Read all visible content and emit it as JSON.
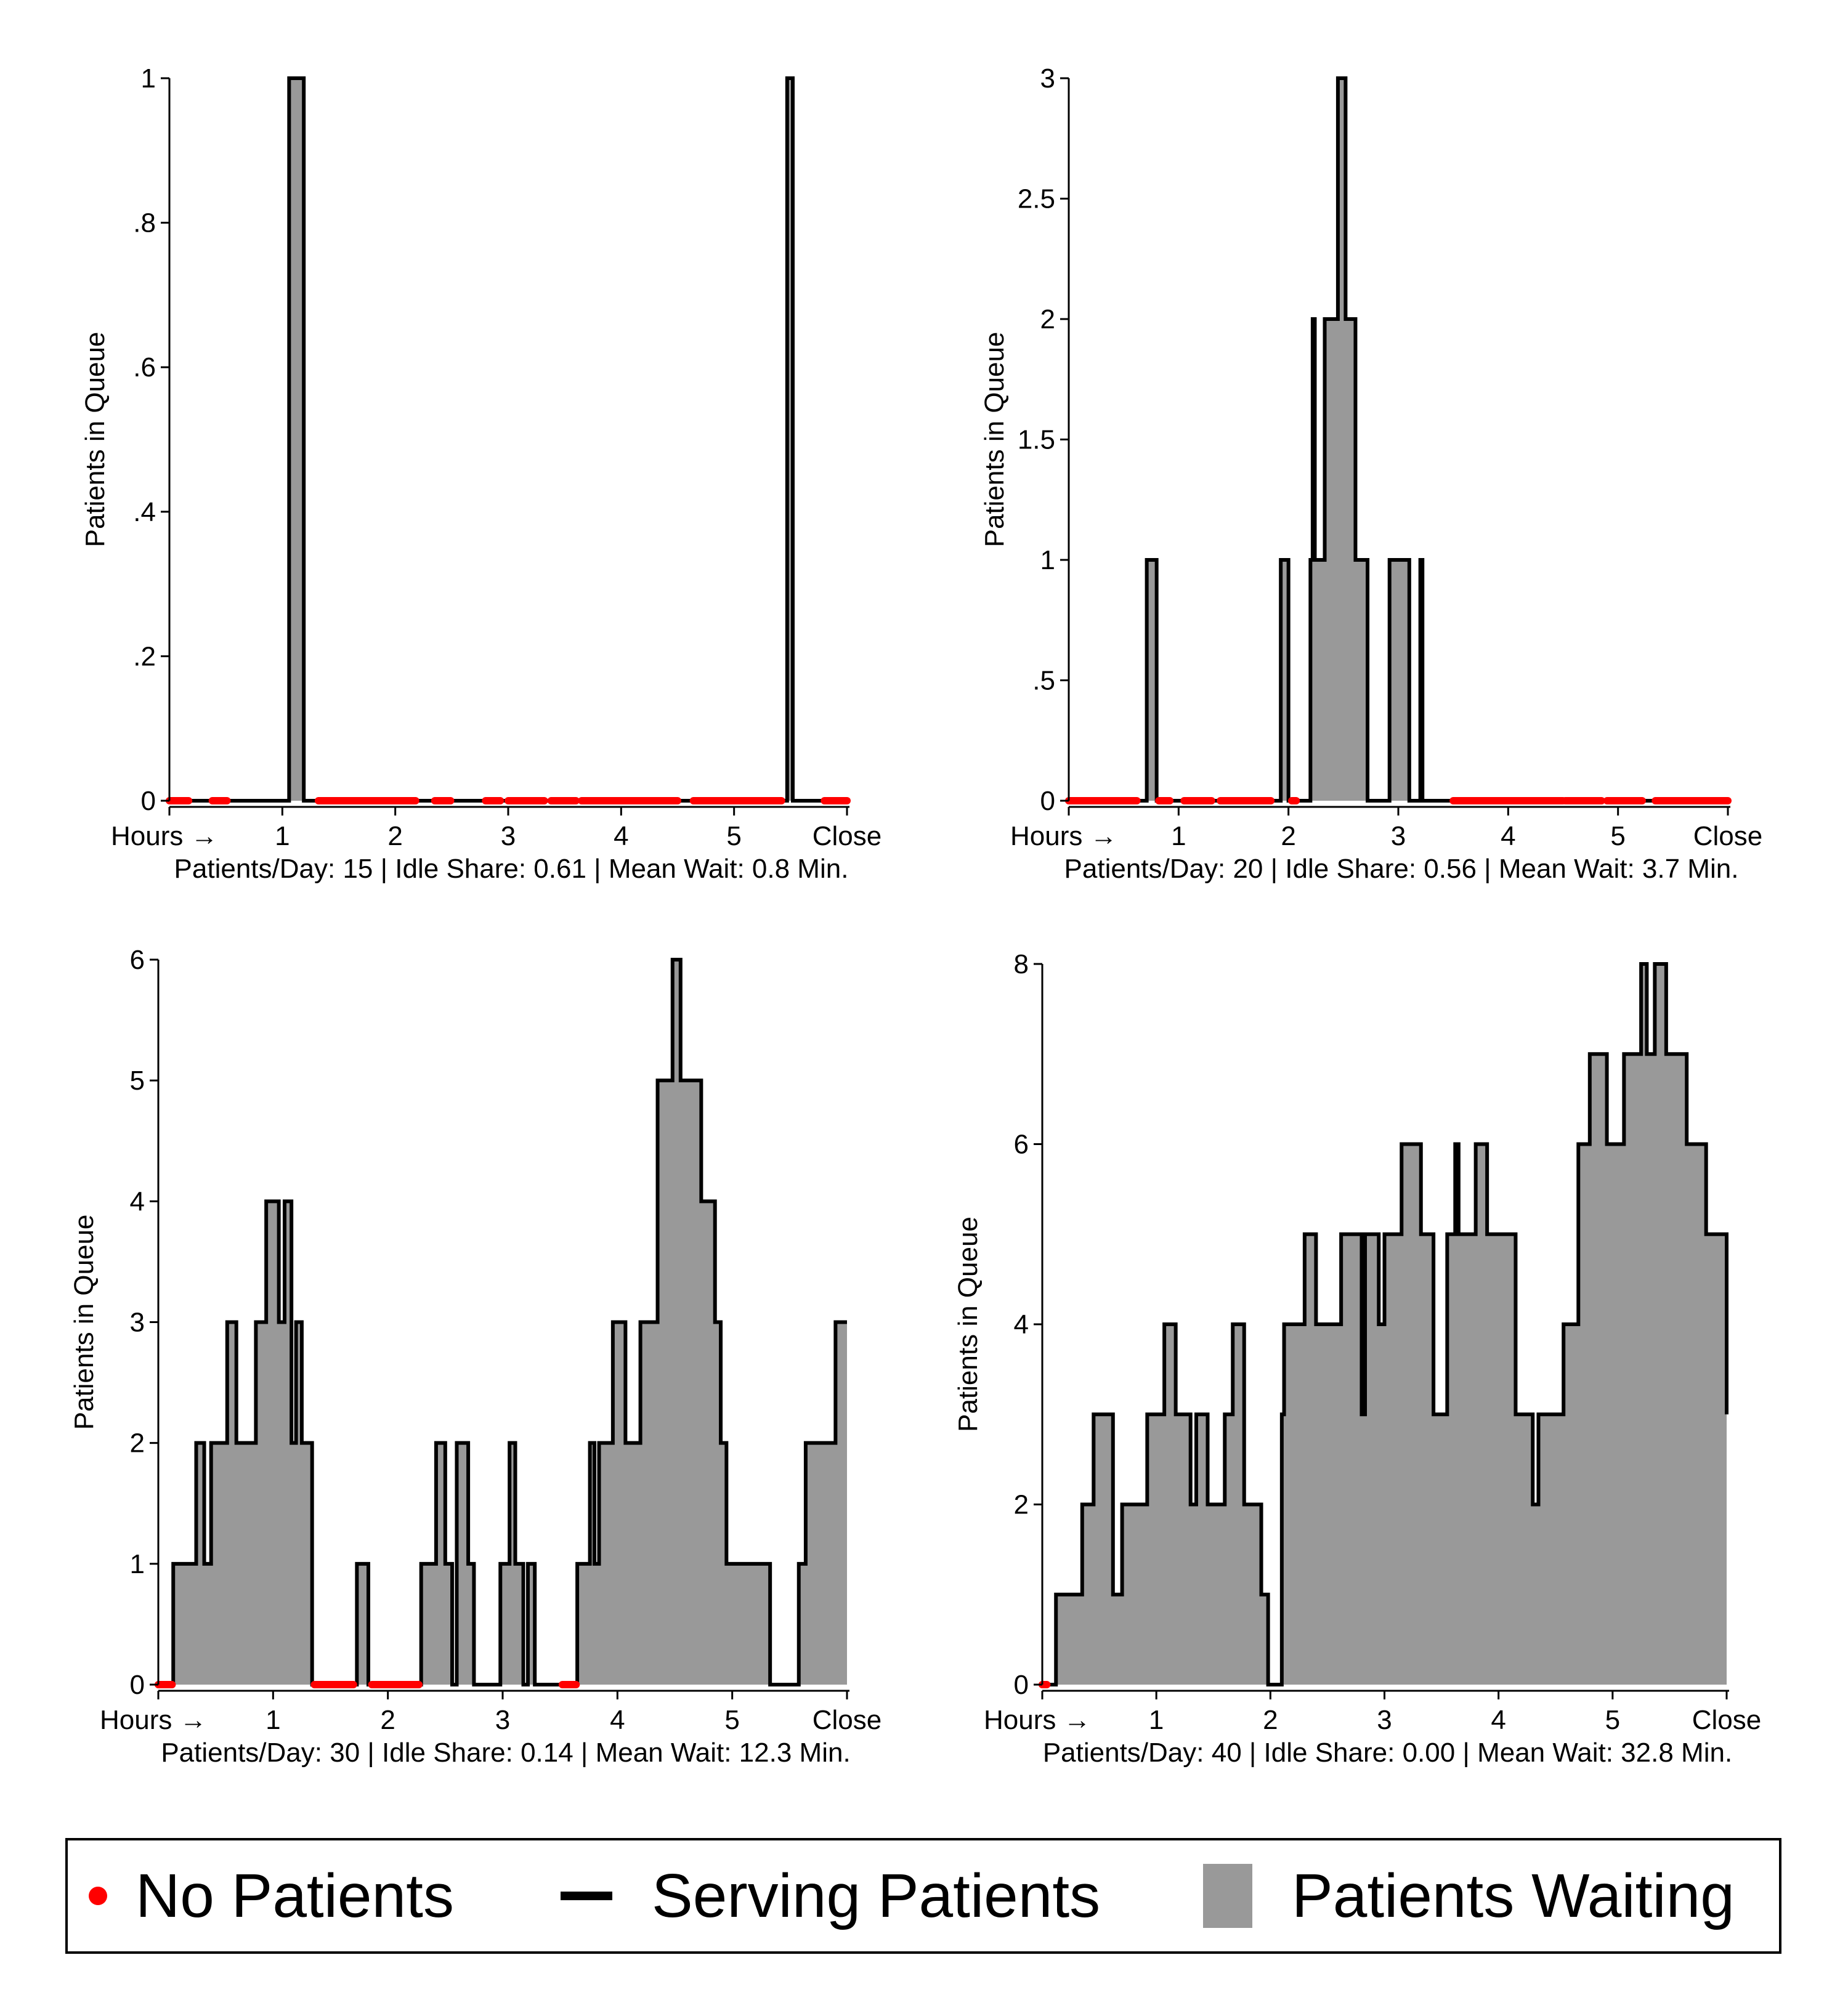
{
  "colors": {
    "idle": "#ff0000",
    "serving": "#000000",
    "waiting": "#999999"
  },
  "legend": {
    "no_patients": "No Patients",
    "serving_patients": "Serving Patients",
    "patients_waiting": "Patients Waiting"
  },
  "chart_data": [
    {
      "type": "area",
      "ylabel": "Patients in Queue",
      "xlabel": "Patients/Day: 15 | Idle Share: 0.61 | Mean Wait: 0.8 Min.",
      "x_ticks": [
        {
          "value": 0,
          "label": "Hours →"
        },
        {
          "value": 1,
          "label": "1"
        },
        {
          "value": 2,
          "label": "2"
        },
        {
          "value": 3,
          "label": "3"
        },
        {
          "value": 4,
          "label": "4"
        },
        {
          "value": 5,
          "label": "5"
        },
        {
          "value": 6,
          "label": "Close"
        }
      ],
      "y_ticks": [
        {
          "value": 0,
          "label": "0"
        },
        {
          "value": 0.2,
          "label": ".2"
        },
        {
          "value": 0.4,
          "label": ".4"
        },
        {
          "value": 0.6,
          "label": ".6"
        },
        {
          "value": 0.8,
          "label": ".8"
        },
        {
          "value": 1,
          "label": "1"
        }
      ],
      "xlim": [
        0,
        6
      ],
      "ylim": [
        0,
        1
      ],
      "queue_steps": [
        [
          0,
          0
        ],
        [
          1.06,
          1
        ],
        [
          1.19,
          0
        ],
        [
          5.47,
          1
        ],
        [
          5.52,
          0
        ],
        [
          6,
          0
        ]
      ],
      "idle_intervals": [
        [
          0,
          0.17
        ],
        [
          0.38,
          0.51
        ],
        [
          1.32,
          2.18
        ],
        [
          2.35,
          2.49
        ],
        [
          2.8,
          2.93
        ],
        [
          3,
          3.32
        ],
        [
          3.38,
          3.6
        ],
        [
          3.65,
          4.5
        ],
        [
          4.64,
          5.42
        ],
        [
          5.8,
          6
        ]
      ]
    },
    {
      "type": "area",
      "ylabel": "Patients in Queue",
      "xlabel": "Patients/Day: 20 | Idle Share: 0.56 | Mean Wait: 3.7 Min.",
      "x_ticks": [
        {
          "value": 0,
          "label": "Hours →"
        },
        {
          "value": 1,
          "label": "1"
        },
        {
          "value": 2,
          "label": "2"
        },
        {
          "value": 3,
          "label": "3"
        },
        {
          "value": 4,
          "label": "4"
        },
        {
          "value": 5,
          "label": "5"
        },
        {
          "value": 6,
          "label": "Close"
        }
      ],
      "y_ticks": [
        {
          "value": 0,
          "label": "0"
        },
        {
          "value": 0.5,
          "label": ".5"
        },
        {
          "value": 1,
          "label": "1"
        },
        {
          "value": 1.5,
          "label": "1.5"
        },
        {
          "value": 2,
          "label": "2"
        },
        {
          "value": 2.5,
          "label": "2.5"
        },
        {
          "value": 3,
          "label": "3"
        }
      ],
      "xlim": [
        0,
        6
      ],
      "ylim": [
        0,
        3
      ],
      "queue_steps": [
        [
          0,
          0
        ],
        [
          0.71,
          1
        ],
        [
          0.8,
          0
        ],
        [
          1.93,
          1
        ],
        [
          2.0,
          0
        ],
        [
          2.2,
          1
        ],
        [
          2.22,
          2
        ],
        [
          2.24,
          1
        ],
        [
          2.33,
          2
        ],
        [
          2.45,
          3
        ],
        [
          2.52,
          2
        ],
        [
          2.61,
          1
        ],
        [
          2.72,
          0
        ],
        [
          2.92,
          1
        ],
        [
          3.1,
          0
        ],
        [
          3.2,
          1
        ],
        [
          3.22,
          0
        ],
        [
          6,
          0
        ]
      ],
      "idle_intervals": [
        [
          0,
          0.62
        ],
        [
          0.82,
          0.92
        ],
        [
          1.05,
          1.3
        ],
        [
          1.38,
          1.84
        ],
        [
          2.03,
          2.07
        ],
        [
          3.5,
          4.5
        ],
        [
          4.52,
          4.85
        ],
        [
          4.9,
          5.22
        ],
        [
          5.34,
          6
        ]
      ]
    },
    {
      "type": "area",
      "ylabel": "Patients in Queue",
      "xlabel": "Patients/Day: 30 | Idle Share: 0.14 | Mean Wait: 12.3 Min.",
      "x_ticks": [
        {
          "value": 0,
          "label": "Hours →"
        },
        {
          "value": 1,
          "label": "1"
        },
        {
          "value": 2,
          "label": "2"
        },
        {
          "value": 3,
          "label": "3"
        },
        {
          "value": 4,
          "label": "4"
        },
        {
          "value": 5,
          "label": "5"
        },
        {
          "value": 6,
          "label": "Close"
        }
      ],
      "y_ticks": [
        {
          "value": 0,
          "label": "0"
        },
        {
          "value": 1,
          "label": "1"
        },
        {
          "value": 2,
          "label": "2"
        },
        {
          "value": 3,
          "label": "3"
        },
        {
          "value": 4,
          "label": "4"
        },
        {
          "value": 5,
          "label": "5"
        },
        {
          "value": 6,
          "label": "6"
        }
      ],
      "xlim": [
        0,
        6
      ],
      "ylim": [
        0,
        6
      ],
      "queue_steps": [
        [
          0,
          0
        ],
        [
          0.13,
          1
        ],
        [
          0.33,
          2
        ],
        [
          0.4,
          1
        ],
        [
          0.46,
          2
        ],
        [
          0.6,
          3
        ],
        [
          0.68,
          2
        ],
        [
          0.85,
          3
        ],
        [
          0.94,
          4
        ],
        [
          1.05,
          3
        ],
        [
          1.1,
          4
        ],
        [
          1.16,
          2
        ],
        [
          1.2,
          3
        ],
        [
          1.25,
          2
        ],
        [
          1.34,
          0
        ],
        [
          1.73,
          1
        ],
        [
          1.83,
          0
        ],
        [
          2.29,
          1
        ],
        [
          2.42,
          2
        ],
        [
          2.5,
          1
        ],
        [
          2.56,
          0
        ],
        [
          2.6,
          2
        ],
        [
          2.7,
          1
        ],
        [
          2.75,
          0
        ],
        [
          2.98,
          1
        ],
        [
          3.06,
          2
        ],
        [
          3.11,
          1
        ],
        [
          3.18,
          0
        ],
        [
          3.22,
          1
        ],
        [
          3.28,
          0
        ],
        [
          3.65,
          1
        ],
        [
          3.76,
          2
        ],
        [
          3.8,
          1
        ],
        [
          3.84,
          2
        ],
        [
          3.96,
          3
        ],
        [
          4.07,
          2
        ],
        [
          4.2,
          3
        ],
        [
          4.35,
          5
        ],
        [
          4.48,
          6
        ],
        [
          4.55,
          5
        ],
        [
          4.73,
          4
        ],
        [
          4.85,
          3
        ],
        [
          4.9,
          2
        ],
        [
          4.95,
          1
        ],
        [
          5.33,
          0
        ],
        [
          5.58,
          1
        ],
        [
          5.64,
          2
        ],
        [
          5.9,
          3
        ],
        [
          6,
          3
        ]
      ],
      "idle_intervals": [
        [
          0,
          0.12
        ],
        [
          1.36,
          1.7
        ],
        [
          1.86,
          2.27
        ],
        [
          3.52,
          3.64
        ]
      ]
    },
    {
      "type": "area",
      "ylabel": "Patients in Queue",
      "xlabel": "Patients/Day: 40 | Idle Share: 0.00 | Mean Wait: 32.8 Min.",
      "x_ticks": [
        {
          "value": 0,
          "label": "Hours →"
        },
        {
          "value": 1,
          "label": "1"
        },
        {
          "value": 2,
          "label": "2"
        },
        {
          "value": 3,
          "label": "3"
        },
        {
          "value": 4,
          "label": "4"
        },
        {
          "value": 5,
          "label": "5"
        },
        {
          "value": 6,
          "label": "Close"
        }
      ],
      "y_ticks": [
        {
          "value": 0,
          "label": "0"
        },
        {
          "value": 2,
          "label": "2"
        },
        {
          "value": 4,
          "label": "4"
        },
        {
          "value": 6,
          "label": "6"
        },
        {
          "value": 8,
          "label": "8"
        }
      ],
      "xlim": [
        0,
        6
      ],
      "ylim": [
        0,
        8
      ],
      "queue_steps": [
        [
          0,
          0
        ],
        [
          0.12,
          1
        ],
        [
          0.35,
          2
        ],
        [
          0.45,
          3
        ],
        [
          0.62,
          1
        ],
        [
          0.7,
          2
        ],
        [
          0.92,
          3
        ],
        [
          1.07,
          4
        ],
        [
          1.17,
          3
        ],
        [
          1.3,
          2
        ],
        [
          1.35,
          3
        ],
        [
          1.45,
          2
        ],
        [
          1.6,
          3
        ],
        [
          1.67,
          4
        ],
        [
          1.77,
          2
        ],
        [
          1.92,
          1
        ],
        [
          1.98,
          0
        ],
        [
          2.1,
          3
        ],
        [
          2.12,
          4
        ],
        [
          2.3,
          5
        ],
        [
          2.4,
          4
        ],
        [
          2.62,
          5
        ],
        [
          2.8,
          3
        ],
        [
          2.83,
          5
        ],
        [
          2.95,
          4
        ],
        [
          3.0,
          5
        ],
        [
          3.15,
          6
        ],
        [
          3.32,
          5
        ],
        [
          3.43,
          3
        ],
        [
          3.55,
          5
        ],
        [
          3.62,
          6
        ],
        [
          3.65,
          5
        ],
        [
          3.8,
          6
        ],
        [
          3.9,
          5
        ],
        [
          4.15,
          3
        ],
        [
          4.3,
          2
        ],
        [
          4.35,
          3
        ],
        [
          4.57,
          4
        ],
        [
          4.7,
          6
        ],
        [
          4.8,
          7
        ],
        [
          4.95,
          6
        ],
        [
          5.1,
          7
        ],
        [
          5.25,
          8
        ],
        [
          5.3,
          7
        ],
        [
          5.37,
          8
        ],
        [
          5.47,
          7
        ],
        [
          5.65,
          6
        ],
        [
          5.82,
          5
        ],
        [
          6,
          4
        ],
        [
          6,
          3
        ]
      ],
      "idle_intervals": [
        [
          0,
          0.04
        ]
      ]
    }
  ]
}
